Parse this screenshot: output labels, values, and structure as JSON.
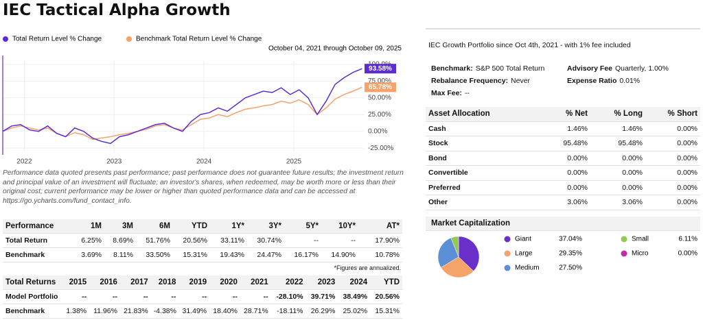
{
  "header": {
    "title": "IEC Tactical Alpha Growth"
  },
  "chart_data": [
    {
      "type": "line",
      "subtitle": "October 04, 2021 through October 09, 2025",
      "x": [
        2021.76,
        2021.86,
        2021.96,
        2022.06,
        2022.16,
        2022.26,
        2022.36,
        2022.46,
        2022.56,
        2022.66,
        2022.76,
        2022.86,
        2022.96,
        2023.06,
        2023.16,
        2023.26,
        2023.36,
        2023.46,
        2023.56,
        2023.66,
        2023.76,
        2023.86,
        2023.96,
        2024.06,
        2024.16,
        2024.26,
        2024.36,
        2024.46,
        2024.56,
        2024.66,
        2024.76,
        2024.86,
        2024.96,
        2025.06,
        2025.16,
        2025.26,
        2025.36,
        2025.46,
        2025.56,
        2025.66,
        2025.76
      ],
      "xlim": [
        2021.76,
        2025.78
      ],
      "xticks": [
        2022,
        2023,
        2024,
        2025
      ],
      "ylim": [
        -30,
        105
      ],
      "yticks": [
        {
          "value": -25,
          "label": "-25.00%"
        },
        {
          "value": 0,
          "label": "0.00%"
        },
        {
          "value": 25,
          "label": "25.00%"
        },
        {
          "value": 50,
          "label": "50.00%"
        },
        {
          "value": 75,
          "label": "75.00%"
        },
        {
          "value": 100,
          "label": "100.0%"
        }
      ],
      "grid": true,
      "series": [
        {
          "name": "Total Return Level % Change",
          "color": "#5b2ccf",
          "values": [
            0,
            8,
            10,
            2,
            0,
            8,
            -3,
            -8,
            5,
            0,
            -10,
            -15,
            -18,
            -8,
            -5,
            0,
            5,
            10,
            12,
            5,
            0,
            15,
            25,
            28,
            35,
            30,
            40,
            50,
            55,
            60,
            58,
            65,
            55,
            62,
            50,
            25,
            45,
            70,
            80,
            88,
            93.58
          ],
          "value_labels": [
            null,
            null,
            null,
            null,
            null,
            null,
            null,
            null,
            null,
            null,
            null,
            null,
            null,
            null,
            null,
            null,
            null,
            null,
            null,
            null,
            null,
            null,
            null,
            null,
            null,
            null,
            null,
            null,
            null,
            null,
            null,
            null,
            null,
            null,
            null,
            null,
            null,
            null,
            null,
            null,
            "93.58%"
          ]
        },
        {
          "name": "Benchmark Total Return Level % Change",
          "color": "#f5a26b",
          "values": [
            0,
            5,
            8,
            5,
            2,
            5,
            -3,
            -8,
            -2,
            -5,
            -12,
            -10,
            -8,
            -5,
            -3,
            0,
            3,
            8,
            10,
            5,
            2,
            10,
            18,
            20,
            25,
            22,
            28,
            33,
            35,
            38,
            40,
            45,
            42,
            47,
            40,
            25,
            35,
            48,
            55,
            60,
            65.78
          ],
          "value_labels": [
            null,
            null,
            null,
            null,
            null,
            null,
            null,
            null,
            null,
            null,
            null,
            null,
            null,
            null,
            null,
            null,
            null,
            null,
            null,
            null,
            null,
            null,
            null,
            null,
            null,
            null,
            null,
            null,
            null,
            null,
            null,
            null,
            null,
            null,
            null,
            null,
            null,
            null,
            null,
            null,
            "65.78%"
          ]
        }
      ]
    },
    {
      "type": "pie",
      "title": "Market Capitalization",
      "categories": [
        "Giant",
        "Large",
        "Medium",
        "Small",
        "Micro"
      ],
      "values": [
        37.04,
        29.35,
        27.5,
        6.11,
        0
      ],
      "value_labels": [
        "37.04%",
        "29.35%",
        "27.50%",
        "6.11%",
        "0.00%"
      ],
      "colors": [
        "#6a2fc9",
        "#f5a26b",
        "#5b8fd6",
        "#94c954",
        "#c52aa8"
      ]
    }
  ],
  "disclaimer": "Performance data quoted presents past performance; past performance does not guarantee future results; the investment return and principal value of an investment will fluctuate; an investor's shares, when redeemed, may be worth more or less than their original cost; current performance may be lower or higher than quoted performance data and can be accessed at https://go.ycharts.com/fund_contact_info.",
  "performance": {
    "headers": [
      "Performance",
      "1M",
      "3M",
      "6M",
      "YTD",
      "1Y*",
      "3Y*",
      "5Y*",
      "10Y*",
      "AT*"
    ],
    "rows": [
      [
        "Total Return",
        "6.25%",
        "8.69%",
        "51.76%",
        "20.56%",
        "33.11%",
        "30.74%",
        "--",
        "--",
        "17.90%"
      ],
      [
        "Benchmark",
        "3.69%",
        "8.11%",
        "33.50%",
        "15.31%",
        "19.43%",
        "24.47%",
        "16.17%",
        "14.90%",
        "10.78%"
      ]
    ],
    "note": "*Figures are annualized."
  },
  "total_returns": {
    "headers": [
      "Total Returns",
      "2015",
      "2016",
      "2017",
      "2018",
      "2019",
      "2020",
      "2021",
      "2022",
      "2023",
      "2024",
      "YTD"
    ],
    "rows": [
      [
        "Model Portfolio",
        "--",
        "--",
        "--",
        "--",
        "--",
        "--",
        "--",
        "-28.10%",
        "39.71%",
        "38.49%",
        "20.56%"
      ],
      [
        "Benchmark",
        "1.38%",
        "11.96%",
        "21.83%",
        "-4.38%",
        "31.49%",
        "18.40%",
        "28.71%",
        "-18.11%",
        "26.29%",
        "25.02%",
        "15.31%"
      ]
    ]
  },
  "info": {
    "title": "IEC Growth Portfolio since Oct 4th, 2021 - with 1% fee included",
    "fields": [
      {
        "label": "Benchmark:",
        "value": "S&P 500 Total Return"
      },
      {
        "label": "Advisory Fee",
        "value": "Quarterly, 1.00%"
      },
      {
        "label": "Rebalance Frequency:",
        "value": "Never"
      },
      {
        "label": "Expense Ratio",
        "value": "0.01%"
      },
      {
        "label": "Max Fee:",
        "value": "--"
      }
    ]
  },
  "asset_allocation": {
    "headers": [
      "Asset Allocation",
      "% Net",
      "% Long",
      "% Short"
    ],
    "rows": [
      [
        "Cash",
        "1.46%",
        "1.46%",
        "0.00%"
      ],
      [
        "Stock",
        "95.48%",
        "95.48%",
        "0.00%"
      ],
      [
        "Bond",
        "0.00%",
        "0.00%",
        "0.00%"
      ],
      [
        "Convertible",
        "0.00%",
        "0.00%",
        "0.00%"
      ],
      [
        "Preferred",
        "0.00%",
        "0.00%",
        "0.00%"
      ],
      [
        "Other",
        "3.06%",
        "3.06%",
        "0.00%"
      ]
    ]
  }
}
